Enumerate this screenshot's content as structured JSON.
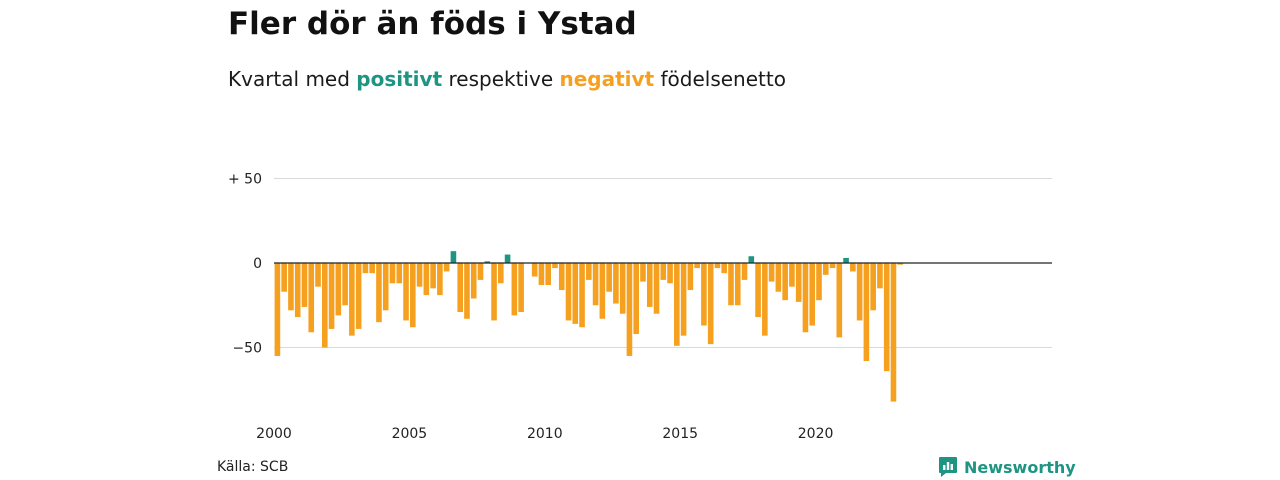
{
  "header": {
    "title": "Fler dör än föds i Ystad",
    "subtitle_prefix": "Kvartal med",
    "subtitle_positive": "positivt",
    "subtitle_middle": "respektive",
    "subtitle_negative": "negativt",
    "subtitle_suffix": "födelsenetto"
  },
  "footer": {
    "source": "Källa: SCB",
    "brand": "Newsworthy",
    "brand_icon": "bar-chart-badge-icon"
  },
  "colors": {
    "positive": "#1e9583",
    "negative": "#f5a01f",
    "grid": "#d9d9d9",
    "zero_line": "#222222"
  },
  "chart_data": {
    "type": "bar",
    "title": "",
    "xlabel": "",
    "ylabel": "",
    "x_start": "2000 Q1",
    "x_tick_labels": [
      "2000",
      "2005",
      "2010",
      "2015",
      "2020"
    ],
    "y_tick_labels": [
      "+ 50",
      "0",
      "−50"
    ],
    "y_ticks": [
      50,
      0,
      -50
    ],
    "ylim": [
      -85,
      55
    ],
    "grid": true,
    "categories": [
      "2000 Q1",
      "2000 Q2",
      "2000 Q3",
      "2000 Q4",
      "2001 Q1",
      "2001 Q2",
      "2001 Q3",
      "2001 Q4",
      "2002 Q1",
      "2002 Q2",
      "2002 Q3",
      "2002 Q4",
      "2003 Q1",
      "2003 Q2",
      "2003 Q3",
      "2003 Q4",
      "2004 Q1",
      "2004 Q2",
      "2004 Q3",
      "2004 Q4",
      "2005 Q1",
      "2005 Q2",
      "2005 Q3",
      "2005 Q4",
      "2006 Q1",
      "2006 Q2",
      "2006 Q3",
      "2006 Q4",
      "2007 Q1",
      "2007 Q2",
      "2007 Q3",
      "2007 Q4",
      "2008 Q1",
      "2008 Q2",
      "2008 Q3",
      "2008 Q4",
      "2009 Q1",
      "2009 Q2",
      "2009 Q3",
      "2009 Q4",
      "2010 Q1",
      "2010 Q2",
      "2010 Q3",
      "2010 Q4",
      "2011 Q1",
      "2011 Q2",
      "2011 Q3",
      "2011 Q4",
      "2012 Q1",
      "2012 Q2",
      "2012 Q3",
      "2012 Q4",
      "2013 Q1",
      "2013 Q2",
      "2013 Q3",
      "2013 Q4",
      "2014 Q1",
      "2014 Q2",
      "2014 Q3",
      "2014 Q4",
      "2015 Q1",
      "2015 Q2",
      "2015 Q3",
      "2015 Q4",
      "2016 Q1",
      "2016 Q2",
      "2016 Q3",
      "2016 Q4",
      "2017 Q1",
      "2017 Q2",
      "2017 Q3",
      "2017 Q4",
      "2018 Q1",
      "2018 Q2",
      "2018 Q3",
      "2018 Q4",
      "2019 Q1",
      "2019 Q2",
      "2019 Q3",
      "2019 Q4",
      "2020 Q1",
      "2020 Q2",
      "2020 Q3",
      "2020 Q4",
      "2021 Q1",
      "2021 Q2",
      "2021 Q3",
      "2021 Q4",
      "2022 Q1",
      "2022 Q2",
      "2022 Q3",
      "2022 Q4",
      "2023 Q1"
    ],
    "values": [
      -55,
      -17,
      -28,
      -32,
      -26,
      -41,
      -14,
      -50,
      -39,
      -31,
      -25,
      -43,
      -39,
      -6,
      -6,
      -35,
      -28,
      -12,
      -12,
      -34,
      -38,
      -14,
      -19,
      -15,
      -19,
      -5,
      7,
      -29,
      -33,
      -21,
      -10,
      1,
      -34,
      -12,
      5,
      -31,
      -29,
      0,
      -8,
      -13,
      -13,
      -3,
      -16,
      -34,
      -36,
      -38,
      -10,
      -25,
      -33,
      -17,
      -24,
      -30,
      -55,
      -42,
      -11,
      -26,
      -30,
      -10,
      -12,
      -49,
      -43,
      -16,
      -3,
      -37,
      -48,
      -3,
      -6,
      -25,
      -25,
      -10,
      4,
      -32,
      -43,
      -11,
      -17,
      -22,
      -14,
      -23,
      -41,
      -37,
      -22,
      -7,
      -3,
      -44,
      3,
      -5,
      -34,
      -58,
      -28,
      -15,
      -64,
      -82,
      -1
    ]
  }
}
